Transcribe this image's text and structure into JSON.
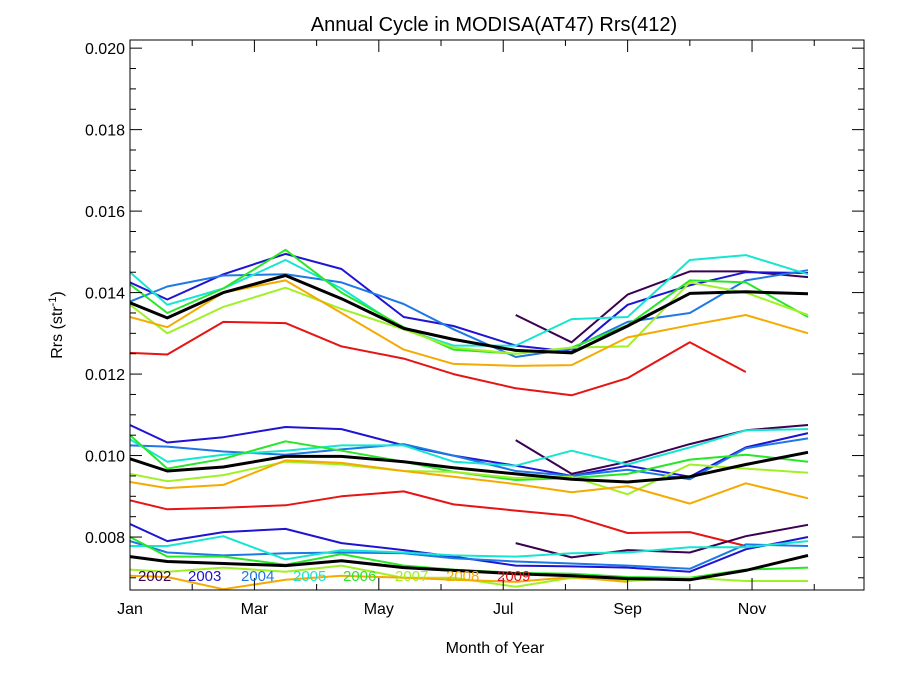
{
  "chart_data": {
    "type": "line",
    "title": "Annual Cycle in MODISA(AT47) Rrs(412)",
    "xlabel": "Month of Year",
    "ylabel": "Rrs (str",
    "ylabel_sup": "-1",
    "ylabel_close": ")",
    "xlim": [
      1,
      12.8
    ],
    "ylim": [
      0.0067,
      0.0202
    ],
    "x_ticks": [
      {
        "label": "Jan",
        "value": 1
      },
      {
        "label": "Mar",
        "value": 3
      },
      {
        "label": "May",
        "value": 5
      },
      {
        "label": "Jul",
        "value": 7
      },
      {
        "label": "Sep",
        "value": 9
      },
      {
        "label": "Nov",
        "value": 11
      }
    ],
    "y_ticks": [
      "0.008",
      "0.010",
      "0.012",
      "0.014",
      "0.016",
      "0.018",
      "0.020"
    ],
    "y_tick_values": [
      0.008,
      0.01,
      0.012,
      0.014,
      0.016,
      0.018,
      0.02
    ],
    "x": [
      1.0,
      1.6,
      2.5,
      3.5,
      4.4,
      5.4,
      6.2,
      7.2,
      8.1,
      9.0,
      10.0,
      10.9,
      11.9
    ],
    "legend_position": "bottom-left",
    "legend": [
      {
        "label": "2002",
        "color": "#3b0050"
      },
      {
        "label": "2003",
        "color": "#1e14d2"
      },
      {
        "label": "2004",
        "color": "#1e78e6"
      },
      {
        "label": "2005",
        "color": "#14e6d2"
      },
      {
        "label": "2006",
        "color": "#28e628"
      },
      {
        "label": "2007",
        "color": "#a0f028"
      },
      {
        "label": "2008",
        "color": "#f5aa00"
      },
      {
        "label": "2009",
        "color": "#e61414"
      }
    ],
    "groups": [
      {
        "series": [
          {
            "year": "2002",
            "color": "#3b0050",
            "width": 2,
            "values": [
              null,
              null,
              null,
              null,
              null,
              null,
              null,
              0.01345,
              0.01278,
              0.01395,
              0.01452,
              0.01452,
              0.01438
            ]
          },
          {
            "year": "2003",
            "color": "#1e14d2",
            "width": 2,
            "values": [
              0.01425,
              0.01383,
              0.01445,
              0.01495,
              0.01458,
              0.0134,
              0.01318,
              0.0127,
              0.01255,
              0.0137,
              0.01418,
              0.0145,
              0.01448
            ]
          },
          {
            "year": "2004",
            "color": "#1e78e6",
            "width": 2,
            "values": [
              0.01378,
              0.01415,
              0.01442,
              0.01445,
              0.01425,
              0.01372,
              0.0131,
              0.01242,
              0.01262,
              0.01328,
              0.0135,
              0.0143,
              0.01455
            ]
          },
          {
            "year": "2005",
            "color": "#14e6d2",
            "width": 2,
            "values": [
              0.0145,
              0.0137,
              0.0141,
              0.0148,
              0.0141,
              0.0131,
              0.0127,
              0.0127,
              0.01335,
              0.0134,
              0.0148,
              0.01492,
              0.01445
            ]
          },
          {
            "year": "2006",
            "color": "#28e628",
            "width": 2,
            "values": [
              0.0142,
              0.0135,
              0.0141,
              0.01505,
              0.014,
              0.01315,
              0.0126,
              0.0125,
              0.01265,
              0.0132,
              0.0143,
              0.01425,
              0.0134
            ]
          },
          {
            "year": "2007",
            "color": "#a0f028",
            "width": 2,
            "values": [
              0.0137,
              0.013,
              0.01365,
              0.01412,
              0.0136,
              0.0131,
              0.01265,
              0.0125,
              0.01265,
              0.01268,
              0.01425,
              0.014,
              0.01345
            ]
          },
          {
            "year": "2008",
            "color": "#f5aa00",
            "width": 2,
            "values": [
              0.0134,
              0.01315,
              0.014,
              0.0143,
              0.0135,
              0.0126,
              0.01225,
              0.0122,
              0.01222,
              0.0129,
              0.0132,
              0.01345,
              0.013
            ]
          },
          {
            "year": "2009",
            "color": "#e61414",
            "width": 2,
            "values": [
              0.01252,
              0.01248,
              0.01328,
              0.01325,
              0.01268,
              0.01238,
              0.012,
              0.01165,
              0.01148,
              0.0119,
              0.01278,
              0.01205,
              null
            ]
          },
          {
            "year": "mean",
            "color": "#000000",
            "width": 3,
            "values": [
              0.01375,
              0.01338,
              0.014,
              0.01442,
              0.01385,
              0.01312,
              0.01285,
              0.01258,
              0.01252,
              0.01318,
              0.01398,
              0.01402,
              0.01397
            ]
          }
        ]
      },
      {
        "series": [
          {
            "year": "2002",
            "color": "#3b0050",
            "width": 2,
            "values": [
              null,
              null,
              null,
              null,
              null,
              null,
              null,
              0.01038,
              0.00955,
              0.00985,
              0.01028,
              0.01062,
              0.01075
            ]
          },
          {
            "year": "2003",
            "color": "#1e14d2",
            "width": 2,
            "values": [
              0.01075,
              0.01032,
              0.01045,
              0.0107,
              0.01065,
              0.01025,
              0.01,
              0.00975,
              0.0095,
              0.00975,
              0.00948,
              0.0102,
              0.01055
            ]
          },
          {
            "year": "2004",
            "color": "#1e78e6",
            "width": 2,
            "values": [
              0.01025,
              0.01022,
              0.0101,
              0.01002,
              0.01015,
              0.01028,
              0.01,
              0.00962,
              0.0095,
              0.00965,
              0.00942,
              0.01018,
              0.01042
            ]
          },
          {
            "year": "2005",
            "color": "#14e6d2",
            "width": 2,
            "values": [
              0.0104,
              0.00985,
              0.01002,
              0.01012,
              0.01025,
              0.01025,
              0.00985,
              0.00975,
              0.01012,
              0.00978,
              0.0102,
              0.01062,
              0.01065
            ]
          },
          {
            "year": "2006",
            "color": "#28e628",
            "width": 2,
            "values": [
              0.0105,
              0.00968,
              0.00992,
              0.01035,
              0.01012,
              0.00985,
              0.0096,
              0.0094,
              0.00945,
              0.00955,
              0.0099,
              0.01002,
              0.00985
            ]
          },
          {
            "year": "2007",
            "color": "#a0f028",
            "width": 2,
            "values": [
              0.00955,
              0.00937,
              0.00952,
              0.00985,
              0.00978,
              0.00962,
              0.0096,
              0.00945,
              0.00948,
              0.00905,
              0.00978,
              0.00968,
              0.00958
            ]
          },
          {
            "year": "2008",
            "color": "#f5aa00",
            "width": 2,
            "values": [
              0.00935,
              0.0092,
              0.00928,
              0.00988,
              0.00982,
              0.00962,
              0.00948,
              0.0093,
              0.0091,
              0.00925,
              0.00882,
              0.00932,
              0.00895
            ]
          },
          {
            "year": "2009",
            "color": "#e61414",
            "width": 2,
            "values": [
              0.0089,
              0.00868,
              0.00872,
              0.00878,
              0.009,
              0.00912,
              0.0088,
              0.00865,
              0.00852,
              0.0081,
              0.00812,
              0.00778,
              null
            ]
          },
          {
            "year": "mean",
            "color": "#000000",
            "width": 3,
            "values": [
              0.00992,
              0.00962,
              0.00972,
              0.00998,
              0.00998,
              0.00985,
              0.0097,
              0.00955,
              0.00942,
              0.00935,
              0.00948,
              0.00978,
              0.01008
            ]
          }
        ]
      },
      {
        "series": [
          {
            "year": "2002",
            "color": "#3b0050",
            "width": 2,
            "values": [
              null,
              null,
              null,
              null,
              null,
              null,
              null,
              0.00785,
              0.0075,
              0.00768,
              0.00762,
              0.00802,
              0.0083
            ]
          },
          {
            "year": "2003",
            "color": "#1e14d2",
            "width": 2,
            "values": [
              0.00832,
              0.0079,
              0.00812,
              0.0082,
              0.00785,
              0.00768,
              0.00752,
              0.0073,
              0.00728,
              0.00725,
              0.00715,
              0.0077,
              0.008
            ]
          },
          {
            "year": "2004",
            "color": "#1e78e6",
            "width": 2,
            "values": [
              0.0079,
              0.00762,
              0.00755,
              0.0076,
              0.00762,
              0.0076,
              0.00748,
              0.0074,
              0.00735,
              0.0073,
              0.00722,
              0.00782,
              0.00778
            ]
          },
          {
            "year": "2005",
            "color": "#14e6d2",
            "width": 2,
            "values": [
              0.00778,
              0.00778,
              0.00802,
              0.00745,
              0.00768,
              0.00762,
              0.00755,
              0.00752,
              0.0076,
              0.00762,
              0.00775,
              0.00775,
              0.0079
            ]
          },
          {
            "year": "2006",
            "color": "#28e628",
            "width": 2,
            "values": [
              0.008,
              0.00752,
              0.00752,
              0.00732,
              0.00758,
              0.0073,
              0.0072,
              0.00712,
              0.0071,
              0.00702,
              0.007,
              0.0072,
              0.00725
            ]
          },
          {
            "year": "2007",
            "color": "#a0f028",
            "width": 2,
            "values": [
              0.0072,
              0.00715,
              0.00725,
              0.00715,
              0.0073,
              0.007,
              0.007,
              0.00678,
              0.007,
              0.00692,
              0.007,
              0.00692,
              0.00692
            ]
          },
          {
            "year": "2008",
            "color": "#f5aa00",
            "width": 2,
            "values": [
              0.00705,
              0.00702,
              0.00672,
              0.00695,
              0.00705,
              0.007,
              0.00695,
              0.0069,
              0.00702,
              0.0069,
              null,
              null,
              null
            ]
          },
          {
            "year": "2009",
            "color": "#e61414",
            "width": 2,
            "values": [
              null,
              null,
              null,
              null,
              null,
              null,
              null,
              null,
              null,
              null,
              null,
              null,
              null
            ]
          },
          {
            "year": "mean",
            "color": "#000000",
            "width": 3,
            "values": [
              0.00752,
              0.0074,
              0.00735,
              0.0073,
              0.00742,
              0.00725,
              0.00718,
              0.0071,
              0.00705,
              0.00698,
              0.00695,
              0.00718,
              0.00755
            ]
          }
        ]
      }
    ]
  }
}
